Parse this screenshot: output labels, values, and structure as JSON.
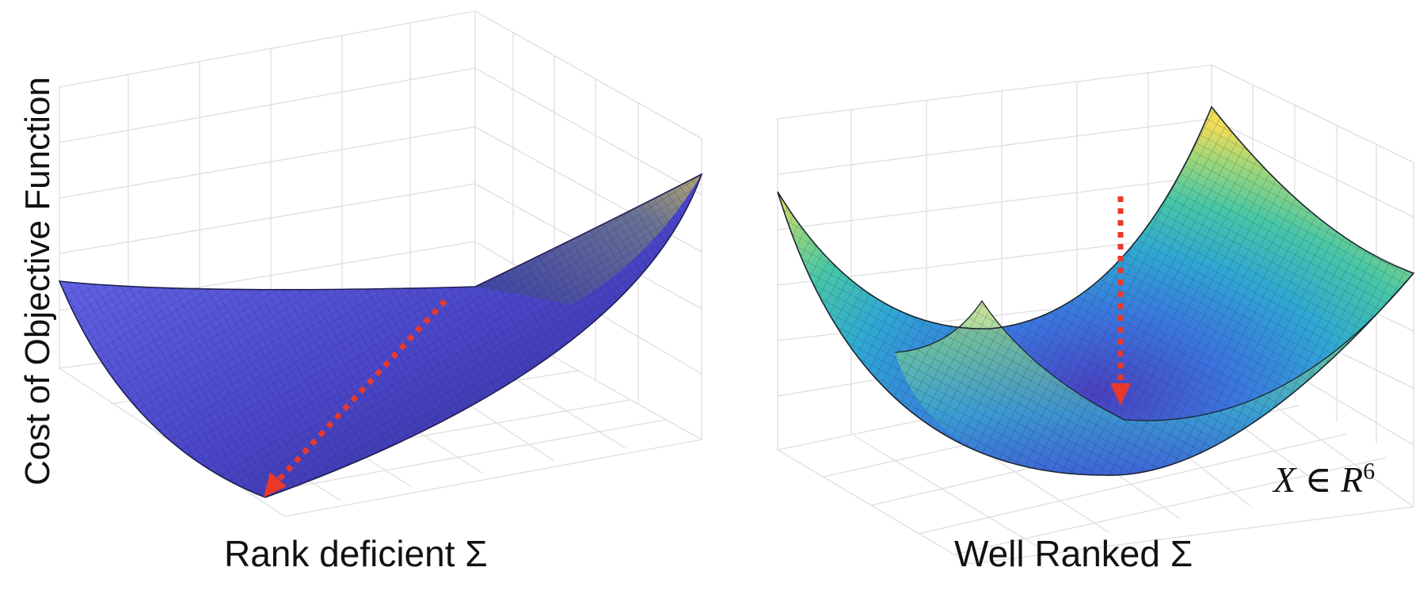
{
  "y_axis_label": "Cost of Objective Function",
  "panels": [
    {
      "id": "left",
      "caption": "Rank deficient Σ",
      "surface": "flat valley along one direction",
      "surface_color": "#5b5bd6",
      "arrow": "descent direction along the flat valley",
      "arrow_color": "#e8392b"
    },
    {
      "id": "right",
      "caption": "Well Ranked Σ",
      "surface": "convex bowl",
      "colormap": [
        "#3e2ea0",
        "#3b7be0",
        "#34b6c4",
        "#7fd08a",
        "#f3dd57"
      ],
      "arrow": "descent toward the minimum",
      "arrow_color": "#e8392b",
      "annotation": {
        "variable": "X",
        "symbol": "∈",
        "space": "R",
        "exponent": "6"
      }
    }
  ]
}
